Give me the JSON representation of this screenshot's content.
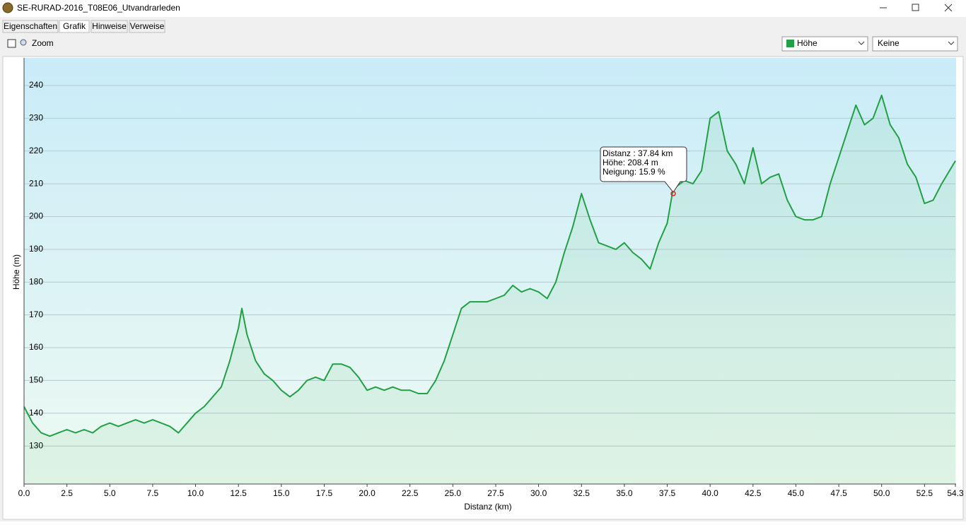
{
  "window": {
    "title": "SE-RURAD-2016_T08E06_Utvandrarleden"
  },
  "tabs": [
    "Eigenschaften",
    "Grafik",
    "Hinweise",
    "Verweise"
  ],
  "toolbar": {
    "zoom": "Zoom",
    "dropdowns": [
      "Höhe",
      "Keine"
    ]
  },
  "tooltip": [
    "Distanz : 37.84 km",
    "Höhe: 208.4 m",
    "Neigung: 15.9 %"
  ],
  "chart_data": {
    "type": "line",
    "xlabel": "Distanz  (km)",
    "ylabel": "Höhe (m)",
    "color": "#22a045",
    "grid": true,
    "xlim": [
      0,
      54.3
    ],
    "ylim": [
      118.4,
      248.4
    ],
    "xticks": [
      {
        "value": 0,
        "label": "0.0"
      },
      2.5,
      {
        "value": 5,
        "label": "5.0"
      },
      7.5,
      {
        "value": 10,
        "label": "10.0"
      },
      12.5,
      {
        "value": 15,
        "label": "15.0"
      },
      17.5,
      {
        "value": 20,
        "label": "20.0"
      },
      22.5,
      {
        "value": 25,
        "label": "25.0"
      },
      27.5,
      {
        "value": 30,
        "label": "30.0"
      },
      32.5,
      {
        "value": 35,
        "label": "35.0"
      },
      37.5,
      {
        "value": 40,
        "label": "40.0"
      },
      42.5,
      {
        "value": 45,
        "label": "45.0"
      },
      47.5,
      {
        "value": 50,
        "label": "50.0"
      },
      52.5,
      54.3
    ],
    "yticks": [
      130,
      140,
      150,
      160,
      170,
      180,
      190,
      200,
      210,
      220,
      230,
      240
    ],
    "x": [
      0,
      0.5,
      1,
      1.5,
      2,
      2.5,
      3,
      3.5,
      4,
      4.5,
      5,
      5.5,
      6,
      6.5,
      7,
      7.5,
      8,
      8.5,
      9,
      9.5,
      10,
      10.5,
      11,
      11.5,
      12,
      12.5,
      12.7,
      13,
      13.5,
      14,
      14.5,
      15,
      15.5,
      16,
      16.5,
      17,
      17.5,
      18,
      18.5,
      19,
      19.5,
      20,
      20.5,
      21,
      21.5,
      22,
      22.5,
      23,
      23.5,
      24,
      24.5,
      25,
      25.5,
      26,
      26.5,
      27,
      27.5,
      28,
      28.5,
      29,
      29.5,
      30,
      30.5,
      31,
      31.5,
      32,
      32.5,
      33,
      33.5,
      34,
      34.5,
      35,
      35.5,
      36,
      36.5,
      37,
      37.5,
      37.84,
      38.5,
      39,
      39.5,
      40,
      40.5,
      41,
      41.5,
      42,
      42.5,
      43,
      43.5,
      44,
      44.5,
      45,
      45.5,
      46,
      46.5,
      47,
      47.5,
      48,
      48.5,
      49,
      49.5,
      50,
      50.5,
      51,
      51.5,
      52,
      52.5,
      53,
      53.5,
      54.3
    ],
    "values": [
      142,
      137,
      134,
      133,
      134,
      135,
      134,
      135,
      134,
      136,
      137,
      136,
      137,
      138,
      137,
      138,
      137,
      136,
      134,
      137,
      140,
      142,
      145,
      148,
      156,
      166,
      172,
      164,
      156,
      152,
      150,
      147,
      145,
      147,
      150,
      151,
      150,
      155,
      155,
      154,
      151,
      147,
      148,
      147,
      148,
      147,
      147,
      146,
      146,
      150,
      156,
      164,
      172,
      174,
      174,
      174,
      175,
      176,
      179,
      177,
      178,
      177,
      175,
      180,
      189,
      197,
      207,
      199,
      192,
      191,
      190,
      192,
      189,
      187,
      184,
      192,
      198,
      208.4,
      211,
      210,
      214,
      230,
      232,
      220,
      216,
      210,
      221,
      210,
      212,
      213,
      205,
      200,
      199,
      199,
      200,
      210,
      218,
      226,
      234,
      228,
      230,
      237,
      228,
      224,
      216,
      212,
      204,
      205,
      210,
      217
    ]
  }
}
